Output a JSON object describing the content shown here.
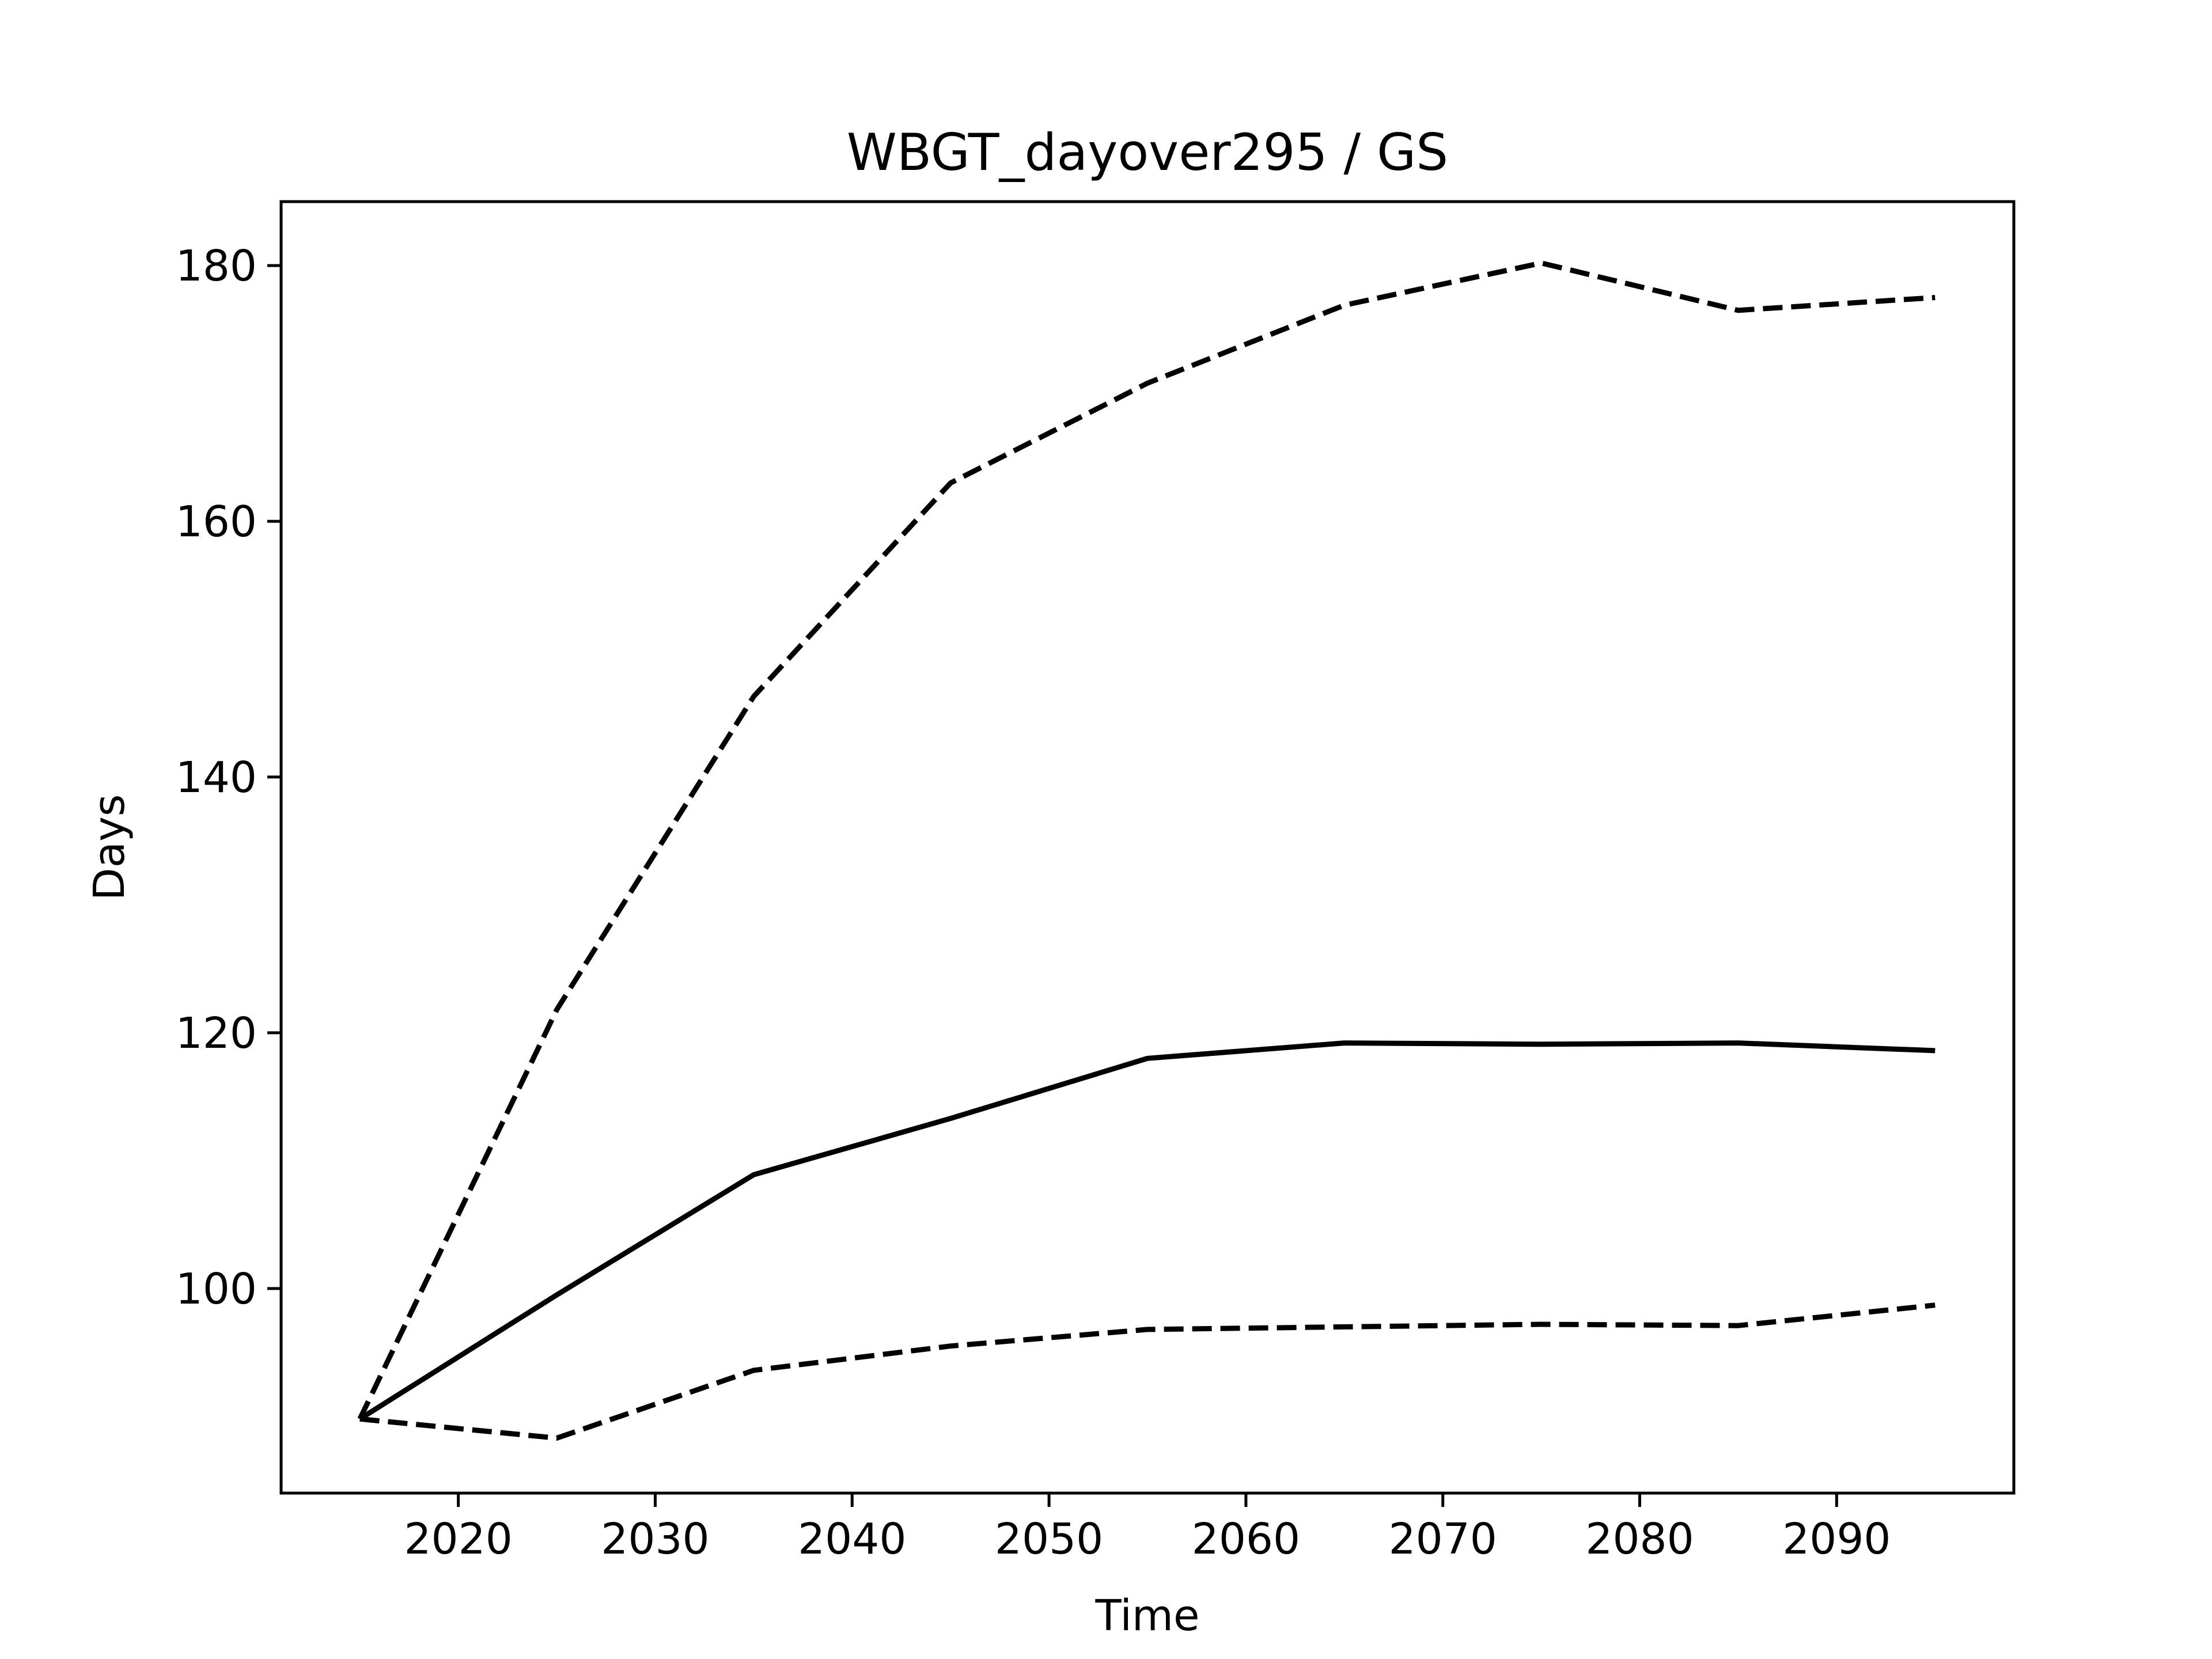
{
  "chart_data": {
    "type": "line",
    "title": "WBGT_dayover295 / GS",
    "xlabel": "Time",
    "ylabel": "Days",
    "xlim": [
      2011,
      2099
    ],
    "ylim": [
      84,
      185
    ],
    "xticks": [
      2020,
      2030,
      2040,
      2050,
      2060,
      2070,
      2080,
      2090
    ],
    "yticks": [
      100,
      120,
      140,
      160,
      180
    ],
    "grid": false,
    "legend": "none",
    "x": [
      2015,
      2025,
      2035,
      2045,
      2055,
      2065,
      2075,
      2085,
      2095
    ],
    "series": [
      {
        "style": "dashed",
        "color": "#000000",
        "values": [
          89.8,
          121.8,
          146.3,
          163.0,
          170.8,
          176.9,
          180.2,
          176.5,
          177.5
        ]
      },
      {
        "style": "solid",
        "color": "#000000",
        "values": [
          89.8,
          99.5,
          108.9,
          113.3,
          118.0,
          119.2,
          119.1,
          119.2,
          118.6
        ]
      },
      {
        "style": "dashed",
        "color": "#000000",
        "values": [
          89.8,
          88.3,
          93.6,
          95.5,
          96.8,
          97.0,
          97.2,
          97.1,
          98.7
        ]
      }
    ]
  }
}
